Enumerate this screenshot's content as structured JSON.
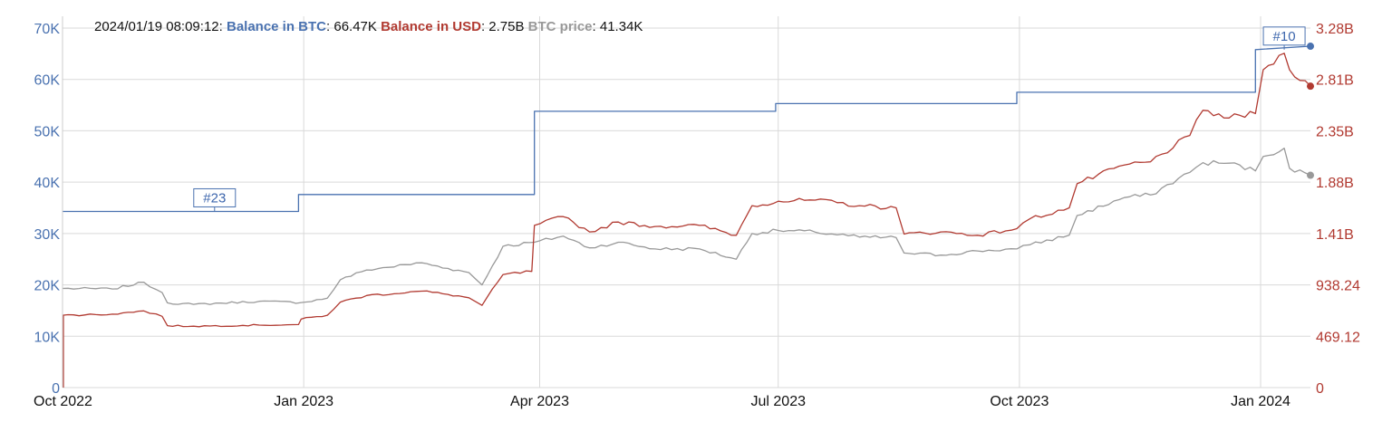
{
  "tooltip": {
    "timestamp": "2024/01/19 08:09:12",
    "items": [
      {
        "label": "Balance in BTC",
        "value": "66.47K",
        "color": "#4a72b0"
      },
      {
        "label": "Balance in USD",
        "value": "2.75B",
        "color": "#b13a31"
      },
      {
        "label": "BTC price",
        "value": "41.34K",
        "color": "#999999"
      }
    ]
  },
  "colors": {
    "btc_balance": "#4a72b0",
    "usd_balance": "#b13a31",
    "btc_price": "#999999",
    "grid": "#d9d9d9"
  },
  "chart_data": {
    "type": "line",
    "x_range": [
      "2022-10-01",
      "2024-01-20"
    ],
    "x_ticks": [
      {
        "date": "2022-10-01",
        "label": "Oct 2022"
      },
      {
        "date": "2023-01-01",
        "label": "Jan 2023"
      },
      {
        "date": "2023-04-01",
        "label": "Apr 2023"
      },
      {
        "date": "2023-07-01",
        "label": "Jul 2023"
      },
      {
        "date": "2023-10-01",
        "label": "Oct 2023"
      },
      {
        "date": "2024-01-01",
        "label": "Jan 2024"
      }
    ],
    "y_left": {
      "range": [
        0,
        70000
      ],
      "ticks": [
        0,
        10000,
        20000,
        30000,
        40000,
        50000,
        60000,
        70000
      ],
      "tick_labels": [
        "0",
        "10K",
        "20K",
        "30K",
        "40K",
        "50K",
        "60K",
        "70K"
      ]
    },
    "y_right": {
      "range": [
        0,
        3280000000
      ],
      "tick_labels": [
        "0",
        "469.12",
        "938.24",
        "1.41B",
        "1.88B",
        "2.35B",
        "2.81B",
        "3.28B"
      ]
    },
    "grid": true,
    "series": [
      {
        "name": "Balance in BTC",
        "axis": "left",
        "step": true,
        "points": [
          [
            "2022-10-01",
            34300
          ],
          [
            "2022-12-30",
            34300
          ],
          [
            "2022-12-30",
            37600
          ],
          [
            "2023-03-30",
            37600
          ],
          [
            "2023-03-30",
            53800
          ],
          [
            "2023-06-30",
            53800
          ],
          [
            "2023-06-30",
            55300
          ],
          [
            "2023-09-30",
            55300
          ],
          [
            "2023-09-30",
            57500
          ],
          [
            "2023-12-30",
            57500
          ],
          [
            "2023-12-30",
            65800
          ],
          [
            "2024-01-20",
            66470
          ]
        ]
      },
      {
        "name": "Balance in USD",
        "axis": "right",
        "points": [
          [
            "2022-10-01",
            660000000
          ],
          [
            "2022-10-20",
            670000000
          ],
          [
            "2022-11-01",
            700000000
          ],
          [
            "2022-11-08",
            650000000
          ],
          [
            "2022-11-10",
            565000000
          ],
          [
            "2022-11-20",
            560000000
          ],
          [
            "2022-12-15",
            570000000
          ],
          [
            "2022-12-30",
            575000000
          ],
          [
            "2022-12-31",
            625000000
          ],
          [
            "2023-01-10",
            660000000
          ],
          [
            "2023-01-15",
            780000000
          ],
          [
            "2023-01-25",
            840000000
          ],
          [
            "2023-02-15",
            880000000
          ],
          [
            "2023-02-25",
            850000000
          ],
          [
            "2023-03-05",
            820000000
          ],
          [
            "2023-03-10",
            750000000
          ],
          [
            "2023-03-18",
            1030000000
          ],
          [
            "2023-03-29",
            1060000000
          ],
          [
            "2023-03-30",
            1480000000
          ],
          [
            "2023-04-10",
            1560000000
          ],
          [
            "2023-04-20",
            1420000000
          ],
          [
            "2023-05-01",
            1510000000
          ],
          [
            "2023-05-15",
            1470000000
          ],
          [
            "2023-06-01",
            1480000000
          ],
          [
            "2023-06-15",
            1390000000
          ],
          [
            "2023-06-21",
            1660000000
          ],
          [
            "2023-07-01",
            1700000000
          ],
          [
            "2023-07-15",
            1710000000
          ],
          [
            "2023-08-01",
            1660000000
          ],
          [
            "2023-08-15",
            1640000000
          ],
          [
            "2023-08-18",
            1400000000
          ],
          [
            "2023-09-01",
            1420000000
          ],
          [
            "2023-09-15",
            1390000000
          ],
          [
            "2023-09-30",
            1450000000
          ],
          [
            "2023-10-05",
            1540000000
          ],
          [
            "2023-10-20",
            1640000000
          ],
          [
            "2023-10-23",
            1860000000
          ],
          [
            "2023-11-10",
            2030000000
          ],
          [
            "2023-11-20",
            2060000000
          ],
          [
            "2023-12-05",
            2300000000
          ],
          [
            "2023-12-10",
            2530000000
          ],
          [
            "2023-12-20",
            2460000000
          ],
          [
            "2023-12-30",
            2500000000
          ],
          [
            "2024-01-02",
            2900000000
          ],
          [
            "2024-01-10",
            3050000000
          ],
          [
            "2024-01-12",
            2900000000
          ],
          [
            "2024-01-18",
            2800000000
          ],
          [
            "2024-01-20",
            2750000000
          ]
        ]
      },
      {
        "name": "BTC price",
        "axis": "left",
        "points": [
          [
            "2022-10-01",
            19300
          ],
          [
            "2022-10-20",
            19200
          ],
          [
            "2022-11-01",
            20500
          ],
          [
            "2022-11-08",
            18500
          ],
          [
            "2022-11-10",
            16500
          ],
          [
            "2022-11-20",
            16200
          ],
          [
            "2022-12-15",
            16800
          ],
          [
            "2022-12-31",
            16550
          ],
          [
            "2023-01-10",
            17400
          ],
          [
            "2023-01-15",
            21000
          ],
          [
            "2023-01-25",
            22900
          ],
          [
            "2023-02-15",
            24300
          ],
          [
            "2023-02-25",
            23200
          ],
          [
            "2023-03-05",
            22400
          ],
          [
            "2023-03-10",
            20000
          ],
          [
            "2023-03-18",
            27500
          ],
          [
            "2023-03-30",
            28300
          ],
          [
            "2023-04-10",
            29500
          ],
          [
            "2023-04-20",
            27200
          ],
          [
            "2023-05-01",
            28300
          ],
          [
            "2023-05-15",
            27000
          ],
          [
            "2023-06-01",
            27000
          ],
          [
            "2023-06-15",
            25000
          ],
          [
            "2023-06-21",
            30000
          ],
          [
            "2023-07-01",
            30600
          ],
          [
            "2023-07-15",
            30300
          ],
          [
            "2023-08-01",
            29300
          ],
          [
            "2023-08-15",
            29200
          ],
          [
            "2023-08-18",
            26200
          ],
          [
            "2023-09-01",
            25800
          ],
          [
            "2023-09-15",
            26600
          ],
          [
            "2023-09-30",
            27000
          ],
          [
            "2023-10-05",
            27800
          ],
          [
            "2023-10-20",
            29700
          ],
          [
            "2023-10-23",
            33500
          ],
          [
            "2023-11-10",
            37000
          ],
          [
            "2023-11-20",
            37500
          ],
          [
            "2023-12-05",
            41900
          ],
          [
            "2023-12-10",
            43800
          ],
          [
            "2023-12-20",
            43700
          ],
          [
            "2023-12-30",
            42200
          ],
          [
            "2024-01-02",
            45000
          ],
          [
            "2024-01-10",
            46600
          ],
          [
            "2024-01-12",
            42700
          ],
          [
            "2024-01-18",
            41800
          ],
          [
            "2024-01-20",
            41340
          ]
        ]
      }
    ],
    "annotations": [
      {
        "label": "#23",
        "date": "2022-11-28",
        "series": "Balance in BTC"
      },
      {
        "label": "#10",
        "date": "2024-01-10",
        "series": "Balance in BTC"
      }
    ]
  }
}
